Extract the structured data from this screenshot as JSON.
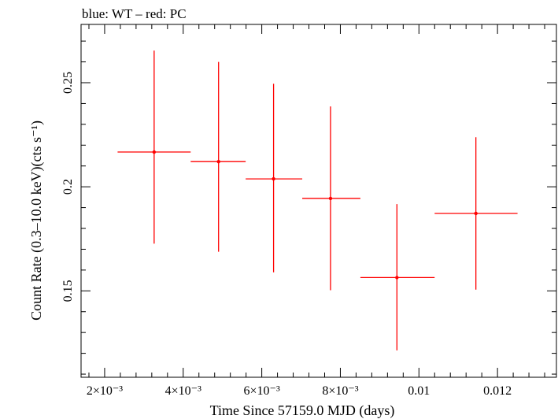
{
  "chart_data": {
    "type": "scatter",
    "title": "blue: WT – red: PC",
    "xlabel": "Time Since 57159.0 MJD (days)",
    "ylabel": "Count Rate (0.3–10.0 keV)(cts s⁻¹)",
    "xlim": [
      0.0014,
      0.0135
    ],
    "ylim": [
      0.1085,
      0.278
    ],
    "x_ticks": [
      {
        "value": 0.002,
        "label": "2×10⁻³"
      },
      {
        "value": 0.004,
        "label": "4×10⁻³"
      },
      {
        "value": 0.006,
        "label": "6×10⁻³"
      },
      {
        "value": 0.008,
        "label": "8×10⁻³"
      },
      {
        "value": 0.01,
        "label": "0.01"
      },
      {
        "value": 0.012,
        "label": "0.012"
      }
    ],
    "y_ticks": [
      {
        "value": 0.15,
        "label": "0.15"
      },
      {
        "value": 0.2,
        "label": "0.2"
      },
      {
        "value": 0.25,
        "label": "0.25"
      }
    ],
    "series": [
      {
        "name": "PC",
        "color": "#ff0000",
        "points": [
          {
            "x": 0.00326,
            "xerr_low": 0.00233,
            "xerr_high": 0.00419,
            "y": 0.2167,
            "y_low": 0.1727,
            "y_high": 0.2654
          },
          {
            "x": 0.0049,
            "xerr_low": 0.00419,
            "xerr_high": 0.00559,
            "y": 0.2121,
            "y_low": 0.1688,
            "y_high": 0.26
          },
          {
            "x": 0.0063,
            "xerr_low": 0.00559,
            "xerr_high": 0.00703,
            "y": 0.2038,
            "y_low": 0.1589,
            "y_high": 0.2495
          },
          {
            "x": 0.00775,
            "xerr_low": 0.00703,
            "xerr_high": 0.00851,
            "y": 0.1944,
            "y_low": 0.1503,
            "y_high": 0.2386
          },
          {
            "x": 0.00944,
            "xerr_low": 0.00851,
            "xerr_high": 0.0104,
            "y": 0.1564,
            "y_low": 0.1214,
            "y_high": 0.1917
          },
          {
            "x": 0.01145,
            "xerr_low": 0.0104,
            "xerr_high": 0.01251,
            "y": 0.1872,
            "y_low": 0.1506,
            "y_high": 0.2238
          }
        ]
      }
    ]
  }
}
